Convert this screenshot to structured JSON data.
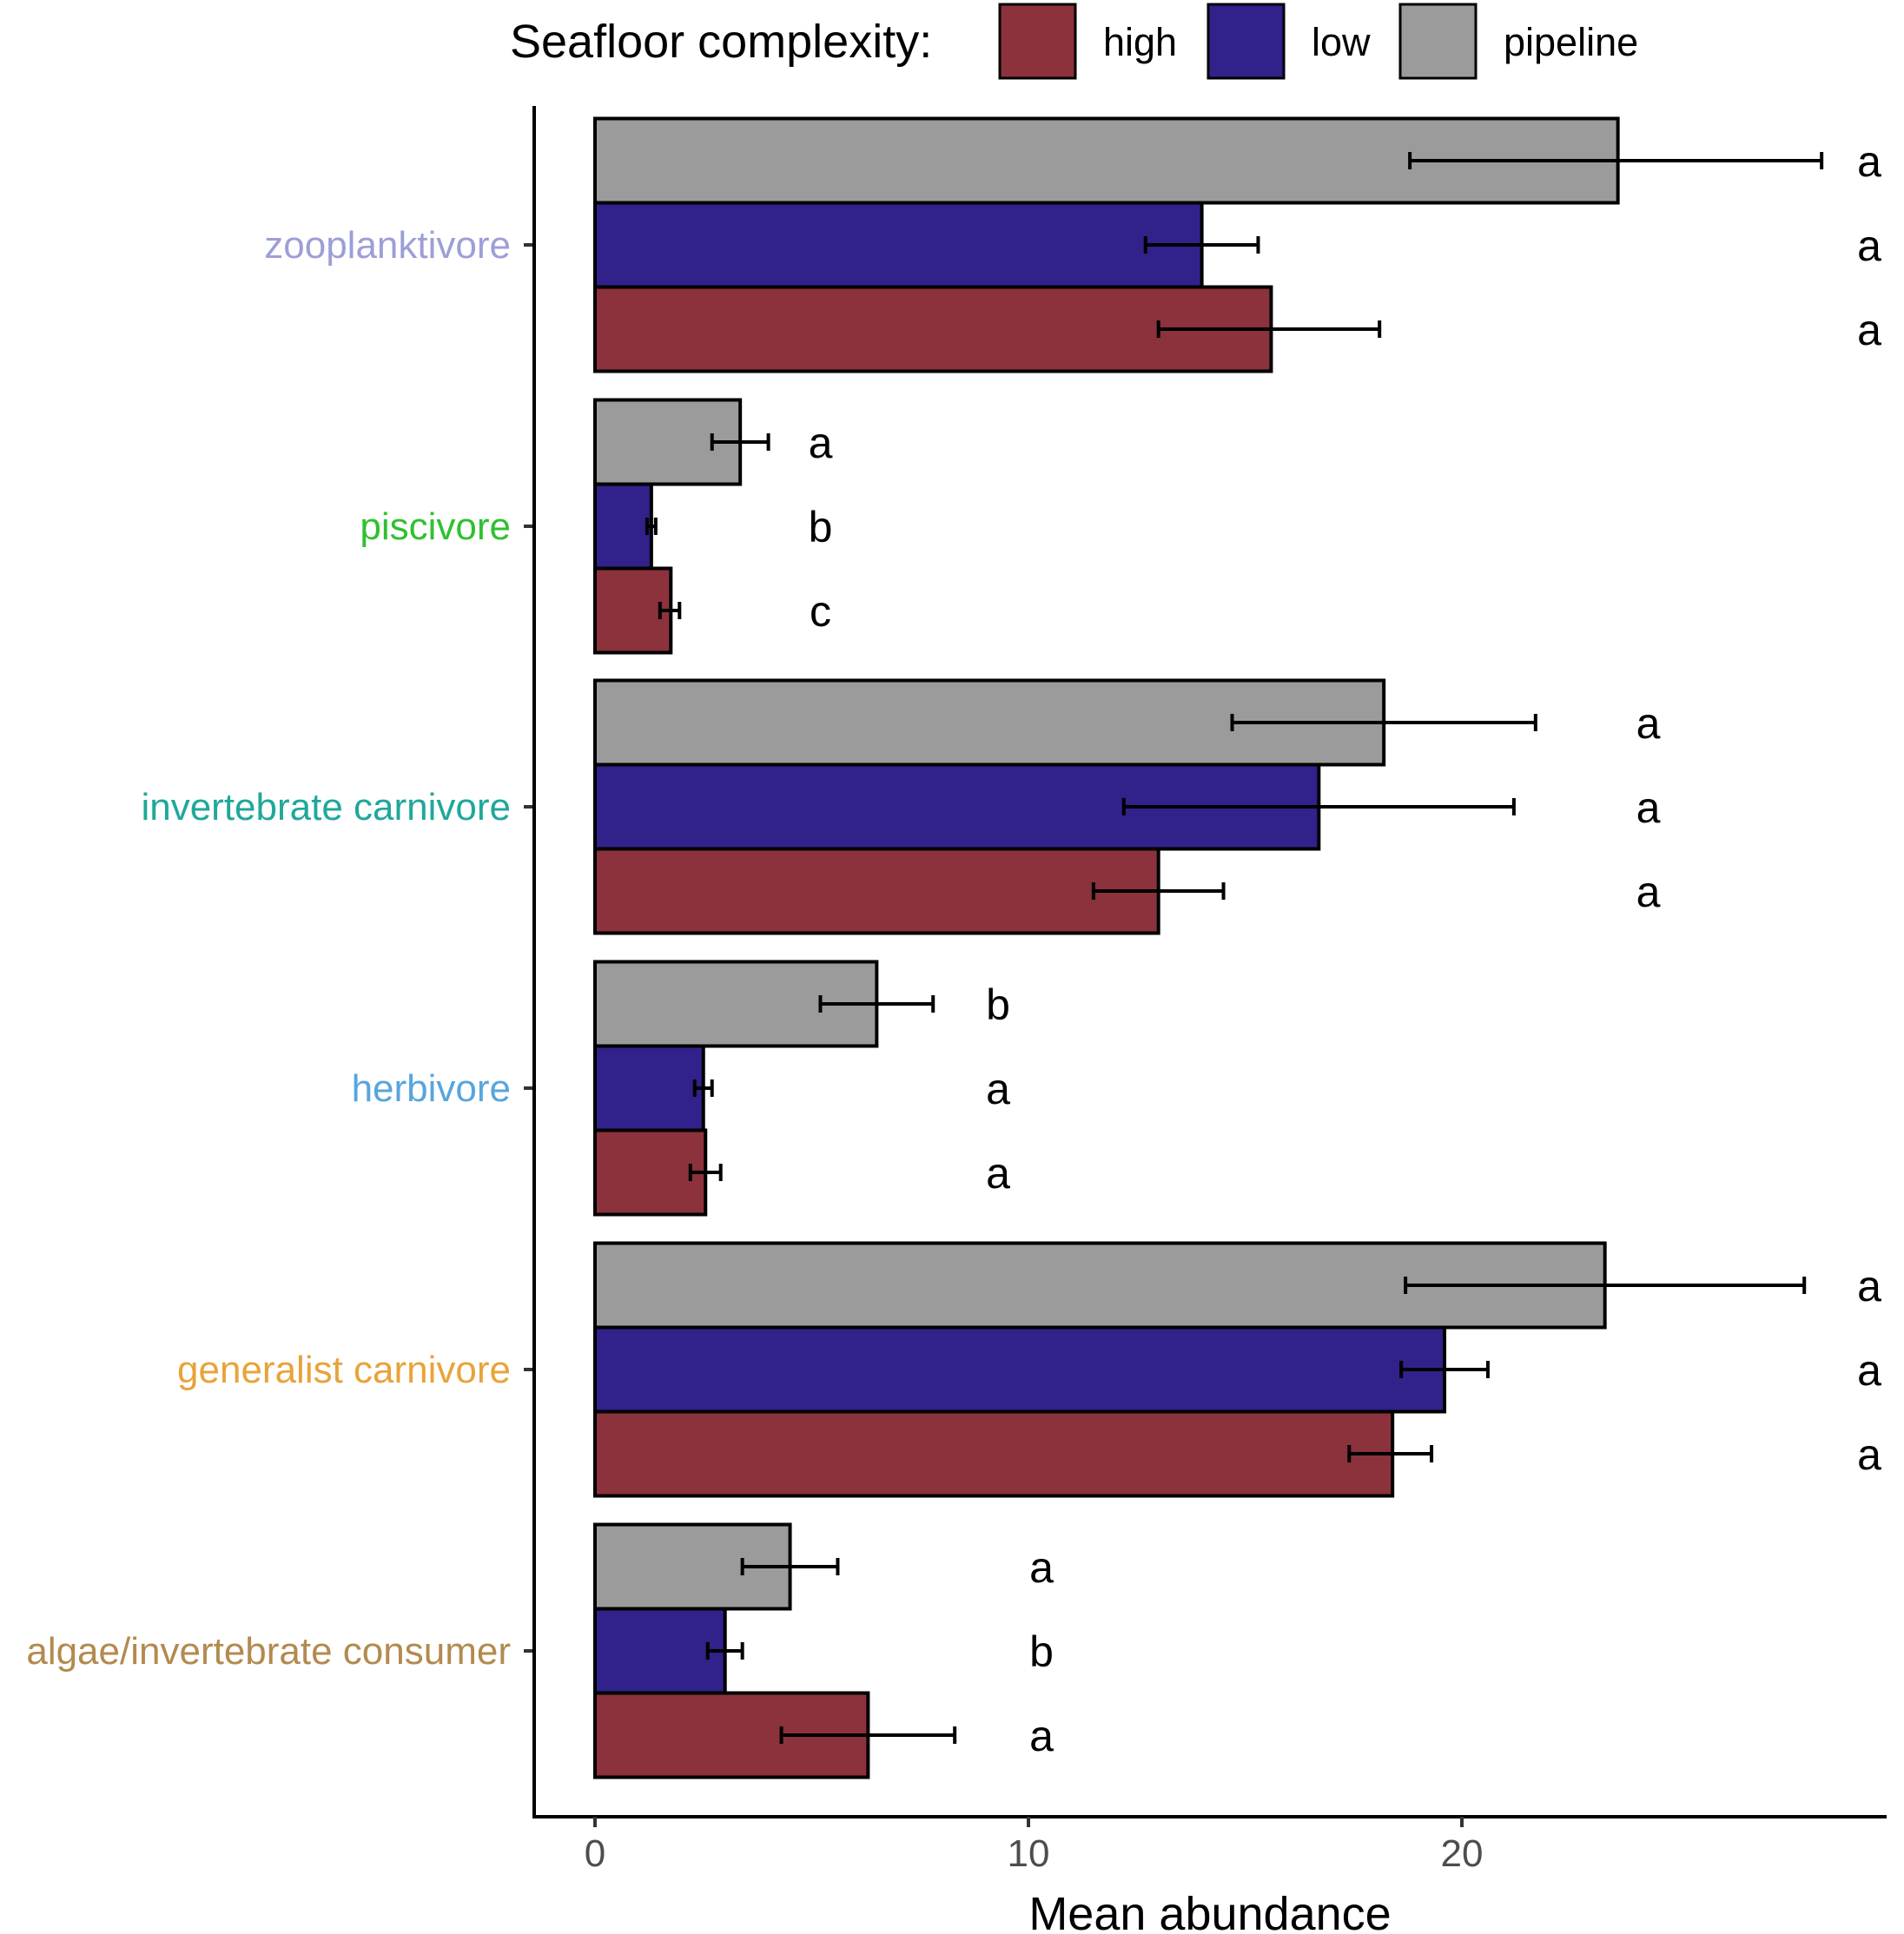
{
  "chart_data": {
    "type": "bar",
    "orientation": "horizontal",
    "title": "",
    "xlabel": "Mean abundance",
    "ylabel": "",
    "xlim": [
      -1.4,
      29.8
    ],
    "x_ticks": [
      0,
      10,
      20
    ],
    "x_tick_labels": [
      "0",
      "10",
      "20"
    ],
    "legend": {
      "title": "Seafloor complexity:",
      "position": "top",
      "entries": [
        "high",
        "low",
        "pipeline"
      ]
    },
    "series_colors": {
      "high": "#8B323C",
      "low": "#31218A",
      "pipeline": "#9B9B9B"
    },
    "categories": [
      {
        "label": "zooplanktivore",
        "color": "#9C9FD6",
        "bars": {
          "pipeline": {
            "mean": 23.6,
            "err_low": 18.8,
            "err_high": 28.3,
            "letter": "a",
            "letter_x": 29.4
          },
          "low": {
            "mean": 14.0,
            "err_low": 12.7,
            "err_high": 15.3,
            "letter": "a",
            "letter_x": 29.4
          },
          "high": {
            "mean": 15.6,
            "err_low": 13.0,
            "err_high": 18.1,
            "letter": "a",
            "letter_x": 29.4
          }
        }
      },
      {
        "label": "piscivore",
        "color": "#2FC12F",
        "bars": {
          "pipeline": {
            "mean": 3.35,
            "err_low": 2.7,
            "err_high": 4.0,
            "letter": "a",
            "letter_x": 5.2
          },
          "low": {
            "mean": 1.3,
            "err_low": 1.2,
            "err_high": 1.4,
            "letter": "b",
            "letter_x": 5.2
          },
          "high": {
            "mean": 1.75,
            "err_low": 1.5,
            "err_high": 1.95,
            "letter": "c",
            "letter_x": 5.2
          }
        }
      },
      {
        "label": "invertebrate carnivore",
        "color": "#1FA89A",
        "bars": {
          "pipeline": {
            "mean": 18.2,
            "err_low": 14.7,
            "err_high": 21.7,
            "letter": "a",
            "letter_x": 24.3
          },
          "low": {
            "mean": 16.7,
            "err_low": 12.2,
            "err_high": 21.2,
            "letter": "a",
            "letter_x": 24.3
          },
          "high": {
            "mean": 13.0,
            "err_low": 11.5,
            "err_high": 14.5,
            "letter": "a",
            "letter_x": 24.3
          }
        }
      },
      {
        "label": "herbivore",
        "color": "#57A6DC",
        "bars": {
          "pipeline": {
            "mean": 6.5,
            "err_low": 5.2,
            "err_high": 7.8,
            "letter": "b",
            "letter_x": 9.3
          },
          "low": {
            "mean": 2.5,
            "err_low": 2.3,
            "err_high": 2.7,
            "letter": "a",
            "letter_x": 9.3
          },
          "high": {
            "mean": 2.55,
            "err_low": 2.2,
            "err_high": 2.9,
            "letter": "a",
            "letter_x": 9.3
          }
        }
      },
      {
        "label": "generalist carnivore",
        "color": "#E8A33A",
        "bars": {
          "pipeline": {
            "mean": 23.3,
            "err_low": 18.7,
            "err_high": 27.9,
            "letter": "a",
            "letter_x": 29.4
          },
          "low": {
            "mean": 19.6,
            "err_low": 18.6,
            "err_high": 20.6,
            "letter": "a",
            "letter_x": 29.4
          },
          "high": {
            "mean": 18.4,
            "err_low": 17.4,
            "err_high": 19.3,
            "letter": "a",
            "letter_x": 29.4
          }
        }
      },
      {
        "label": "algae/invertebrate consumer",
        "color": "#B38A4F",
        "bars": {
          "pipeline": {
            "mean": 4.5,
            "err_low": 3.4,
            "err_high": 5.6,
            "letter": "a",
            "letter_x": 10.3
          },
          "low": {
            "mean": 3.0,
            "err_low": 2.6,
            "err_high": 3.4,
            "letter": "b",
            "letter_x": 10.3
          },
          "high": {
            "mean": 6.3,
            "err_low": 4.3,
            "err_high": 8.3,
            "letter": "a",
            "letter_x": 10.3
          }
        }
      }
    ]
  }
}
